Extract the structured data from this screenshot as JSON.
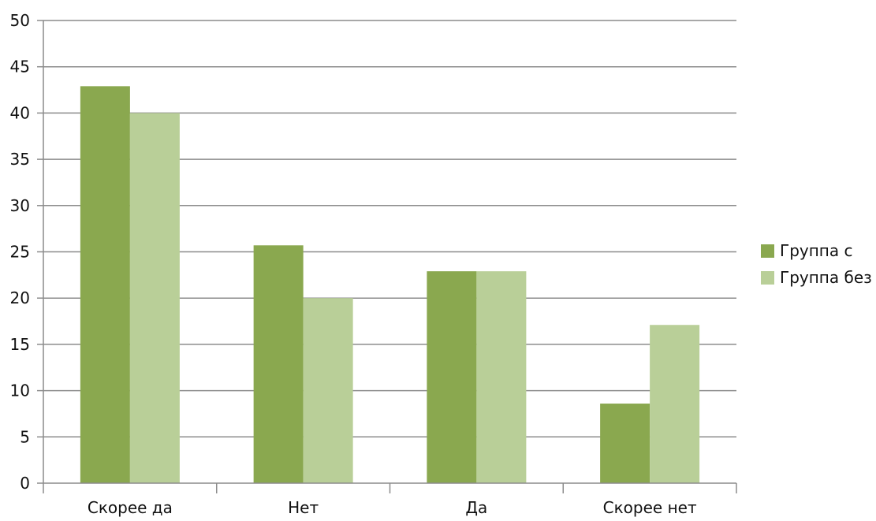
{
  "chart_data": {
    "type": "bar",
    "categories": [
      "Скорее да",
      "Нет",
      "Да",
      "Скорее нет"
    ],
    "series": [
      {
        "name": "Группа с",
        "values": [
          42.9,
          25.7,
          22.9,
          8.6
        ],
        "color": "#8aa84f"
      },
      {
        "name": "Группа без",
        "values": [
          40.0,
          20.0,
          22.9,
          17.1
        ],
        "color": "#b9cf98"
      }
    ],
    "ylim": [
      0,
      50
    ],
    "y_ticks": [
      0,
      5,
      10,
      15,
      20,
      25,
      30,
      35,
      40,
      45,
      50
    ],
    "grid": true,
    "legend_position": "right"
  }
}
